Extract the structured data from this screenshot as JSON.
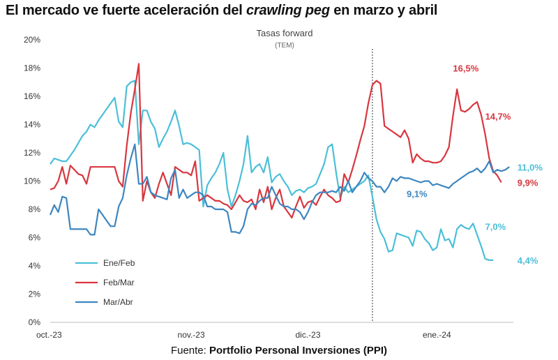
{
  "headline": {
    "prefix": "El mercado ve fuerte aceleración del ",
    "emph": "crawling peg",
    "suffix": " en marzo y abril"
  },
  "source": {
    "label": "Fuente: ",
    "name": "Portfolio Personal Inversiones (PPI)"
  },
  "chart_data": {
    "type": "line",
    "title": "Tasas forward",
    "subtitle": "(TEM)",
    "ylim": [
      0,
      20
    ],
    "xlim": [
      0,
      115
    ],
    "yticks": [
      0,
      2,
      4,
      6,
      8,
      10,
      12,
      14,
      16,
      18,
      20
    ],
    "ytick_labels": [
      "0%",
      "2%",
      "4%",
      "6%",
      "8%",
      "10%",
      "12%",
      "14%",
      "16%",
      "18%",
      "20%"
    ],
    "xticks": [
      {
        "x": 0,
        "label": "oct.-23"
      },
      {
        "x": 35,
        "label": "nov.-23"
      },
      {
        "x": 64,
        "label": "dic.-23"
      },
      {
        "x": 96,
        "label": "ene.-24"
      }
    ],
    "vline_x": 80,
    "series": [
      {
        "name": "Ene/Feb",
        "color": "#4bbfd8",
        "x": [
          0,
          1,
          2,
          3,
          4,
          5,
          6,
          7,
          8,
          9,
          10,
          11,
          12,
          13,
          14,
          15,
          16,
          17,
          18,
          19,
          20,
          21,
          22,
          23,
          24,
          25,
          26,
          27,
          28,
          29,
          30,
          31,
          32,
          33,
          34,
          35,
          36,
          37,
          38,
          39,
          40,
          41,
          42,
          43,
          44,
          45,
          46,
          47,
          48,
          49,
          50,
          51,
          52,
          53,
          54,
          55,
          56,
          57,
          58,
          59,
          60,
          61,
          62,
          63,
          64,
          65,
          66,
          67,
          68,
          69,
          70,
          71,
          72,
          73,
          74,
          75,
          76,
          77,
          78,
          79,
          80,
          81,
          82,
          83,
          84,
          85,
          86,
          87,
          88,
          89,
          90,
          91,
          92,
          93,
          94,
          95,
          96,
          97,
          98,
          99,
          100,
          101,
          102,
          103,
          104,
          105,
          106,
          107,
          108,
          109,
          110
        ],
        "values": [
          11.2,
          11.6,
          11.5,
          11.4,
          11.4,
          11.8,
          12.2,
          12.7,
          13.2,
          13.5,
          14.0,
          13.8,
          14.3,
          14.7,
          15.1,
          15.5,
          15.9,
          14.2,
          13.8,
          16.7,
          17.0,
          17.1,
          12.6,
          15.0,
          15.0,
          14.2,
          13.7,
          12.4,
          13.0,
          13.5,
          14.2,
          15.0,
          13.9,
          12.6,
          12.7,
          12.6,
          12.4,
          12.2,
          8.2,
          9.7,
          10.2,
          10.6,
          11.2,
          12.0,
          9.4,
          8.2,
          9.0,
          10.0,
          11.2,
          13.2,
          10.6,
          11.0,
          11.2,
          10.6,
          11.7,
          9.9,
          10.3,
          10.5,
          10.0,
          9.6,
          9.0,
          9.3,
          9.4,
          9.2,
          9.5,
          9.6,
          9.8,
          10.5,
          11.2,
          12.4,
          12.6,
          10.6,
          8.8,
          9.6,
          9.2,
          9.4,
          9.6,
          9.8,
          10.0,
          10.4,
          8.9,
          7.3,
          6.4,
          5.9,
          5.0,
          5.1,
          6.3,
          6.2,
          6.1,
          6.0,
          5.4,
          6.5,
          6.4,
          5.9,
          5.6,
          5.1,
          5.3,
          6.6,
          5.8,
          5.9,
          5.3,
          6.6,
          6.9,
          6.7,
          6.6,
          7.0,
          6.2,
          5.4,
          4.5,
          4.4,
          4.4
        ]
      },
      {
        "name": "Feb/Mar",
        "color": "#d8363f",
        "x": [
          0,
          1,
          2,
          3,
          4,
          5,
          6,
          7,
          8,
          9,
          10,
          11,
          12,
          13,
          14,
          15,
          16,
          17,
          18,
          19,
          20,
          21,
          22,
          23,
          24,
          25,
          26,
          27,
          28,
          29,
          30,
          31,
          32,
          33,
          34,
          35,
          36,
          37,
          38,
          39,
          40,
          41,
          42,
          43,
          44,
          45,
          46,
          47,
          48,
          49,
          50,
          51,
          52,
          53,
          54,
          55,
          56,
          57,
          58,
          59,
          60,
          61,
          62,
          63,
          64,
          65,
          66,
          67,
          68,
          69,
          70,
          71,
          72,
          73,
          74,
          75,
          76,
          77,
          78,
          79,
          80,
          81,
          82,
          83,
          84,
          85,
          86,
          87,
          88,
          89,
          90,
          91,
          92,
          93,
          94,
          95,
          96,
          97,
          98,
          99,
          100,
          101,
          102,
          103,
          104,
          105,
          106,
          107,
          108,
          109,
          110,
          111,
          112
        ],
        "values": [
          9.4,
          9.5,
          10.0,
          11.0,
          9.8,
          11.1,
          10.8,
          10.5,
          10.4,
          9.8,
          11.0,
          11.0,
          11.0,
          11.0,
          11.0,
          11.0,
          11.0,
          10.0,
          9.6,
          12.5,
          14.8,
          16.5,
          18.3,
          8.6,
          10.0,
          9.2,
          8.8,
          9.8,
          10.6,
          9.8,
          9.0,
          11.0,
          10.8,
          10.6,
          10.6,
          10.4,
          11.4,
          8.6,
          8.8,
          9.0,
          8.8,
          8.6,
          8.6,
          8.4,
          8.3,
          8.0,
          8.5,
          9.0,
          8.6,
          8.5,
          8.7,
          8.0,
          9.4,
          8.5,
          9.6,
          8.0,
          8.8,
          9.4,
          8.2,
          7.8,
          7.4,
          8.2,
          8.9,
          8.1,
          8.5,
          8.6,
          8.3,
          8.9,
          9.4,
          9.0,
          8.8,
          8.5,
          8.6,
          10.5,
          9.9,
          10.8,
          11.8,
          12.9,
          13.9,
          15.5,
          16.8,
          17.1,
          16.9,
          13.9,
          13.7,
          13.5,
          13.3,
          13.1,
          13.6,
          13.0,
          11.3,
          11.9,
          11.6,
          11.4,
          11.4,
          11.3,
          11.3,
          11.4,
          11.8,
          12.4,
          14.6,
          16.5,
          15.0,
          14.9,
          15.1,
          15.4,
          15.6,
          14.7,
          13.3,
          11.6,
          10.7,
          10.4,
          9.9
        ]
      },
      {
        "name": "Mar/Abr",
        "color": "#3d86c0",
        "x": [
          0,
          1,
          2,
          3,
          4,
          5,
          6,
          7,
          8,
          9,
          10,
          11,
          12,
          13,
          14,
          15,
          16,
          17,
          18,
          19,
          20,
          21,
          22,
          23,
          24,
          25,
          26,
          27,
          28,
          29,
          30,
          31,
          32,
          33,
          34,
          35,
          36,
          37,
          38,
          39,
          40,
          41,
          42,
          43,
          44,
          45,
          46,
          47,
          48,
          49,
          50,
          51,
          52,
          53,
          54,
          55,
          56,
          57,
          58,
          59,
          60,
          61,
          62,
          63,
          64,
          65,
          66,
          67,
          68,
          69,
          70,
          71,
          72,
          73,
          74,
          75,
          76,
          77,
          78,
          79,
          80,
          81,
          82,
          83,
          84,
          85,
          86,
          87,
          88,
          89,
          90,
          91,
          92,
          93,
          94,
          95,
          96,
          97,
          98,
          99,
          100,
          101,
          102,
          103,
          104,
          105,
          106,
          107,
          108,
          109,
          110,
          111,
          112,
          113,
          114
        ],
        "values": [
          7.6,
          8.3,
          7.8,
          8.9,
          8.8,
          6.6,
          6.6,
          6.6,
          6.6,
          6.6,
          6.2,
          6.2,
          8.0,
          7.6,
          7.2,
          6.8,
          6.8,
          8.2,
          8.8,
          10.4,
          11.6,
          12.6,
          9.8,
          9.8,
          10.3,
          9.2,
          9.0,
          8.9,
          8.8,
          8.7,
          10.2,
          10.8,
          8.8,
          9.4,
          8.8,
          9.0,
          9.2,
          9.2,
          9.0,
          8.2,
          8.2,
          8.0,
          8.0,
          8.0,
          7.8,
          6.4,
          6.4,
          6.3,
          6.8,
          8.0,
          8.4,
          8.3,
          8.6,
          8.8,
          8.8,
          9.6,
          9.0,
          8.4,
          8.2,
          8.2,
          8.0,
          8.0,
          7.8,
          7.3,
          7.8,
          8.5,
          9.0,
          9.2,
          9.2,
          9.2,
          9.3,
          9.2,
          9.6,
          9.3,
          10.0,
          9.2,
          9.6,
          10.0,
          10.6,
          10.2,
          10.0,
          9.6,
          9.6,
          9.2,
          9.6,
          10.2,
          10.0,
          10.3,
          10.2,
          10.2,
          10.1,
          10.0,
          9.9,
          10.0,
          10.0,
          9.7,
          9.8,
          9.7,
          9.6,
          9.5,
          9.8,
          10.0,
          10.2,
          10.4,
          10.6,
          10.7,
          10.9,
          10.6,
          10.9,
          11.4,
          10.6,
          10.8,
          10.7,
          10.8,
          11.0
        ]
      }
    ],
    "annotations": [
      {
        "text": "16,5%",
        "series": 1,
        "x": 100,
        "y": 18.0
      },
      {
        "text": "14,7%",
        "series": 1,
        "x": 108,
        "y": 14.6
      },
      {
        "text": "9,9%",
        "series": 1,
        "x": 116,
        "y": 9.9
      },
      {
        "text": "11,0%",
        "series": 0,
        "x": 116,
        "y": 11.0
      },
      {
        "text": "9,1%",
        "series": 2,
        "x": 88.5,
        "y": 9.1
      },
      {
        "text": "7,0%",
        "series": 0,
        "x": 108,
        "y": 6.8
      },
      {
        "text": "4,4%",
        "series": 0,
        "x": 116,
        "y": 4.4
      }
    ]
  }
}
